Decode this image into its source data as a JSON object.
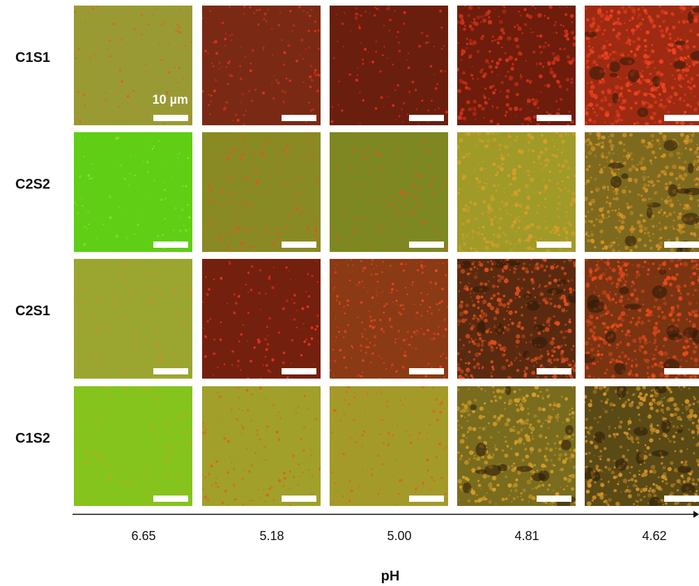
{
  "figure": {
    "rows": [
      {
        "label": "C1S1",
        "base": [
          "#9a9a34",
          "#7a2a14",
          "#6a1e0e",
          "#6e1c0c",
          "#9e2a12"
        ],
        "spot": [
          "#d46a1c",
          "#e8341c",
          "#e02a18",
          "#d8341a",
          "#f04420"
        ],
        "density": [
          0.25,
          0.5,
          0.4,
          1.3,
          2.2
        ]
      },
      {
        "label": "C2S2",
        "base": [
          "#5fce14",
          "#8a8a24",
          "#7e8822",
          "#a09a28",
          "#7e6a1e"
        ],
        "spot": [
          "#8ae02a",
          "#e0581c",
          "#d85a1c",
          "#d6a02a",
          "#d49428"
        ],
        "density": [
          0.2,
          0.5,
          0.5,
          1.5,
          2.2
        ]
      },
      {
        "label": "C2S1",
        "base": [
          "#9aa630",
          "#74200e",
          "#8a3a14",
          "#5a2a10",
          "#7a3412"
        ],
        "spot": [
          "#d48a22",
          "#ee3420",
          "#e8481e",
          "#e0501c",
          "#e84a1c"
        ],
        "density": [
          0.25,
          0.4,
          1.0,
          2.2,
          2.2
        ]
      },
      {
        "label": "C1S2",
        "base": [
          "#84c41c",
          "#a0a02a",
          "#a49a2a",
          "#7a6c1e",
          "#5a4a16"
        ],
        "spot": [
          "#d4a022",
          "#e0601c",
          "#de621c",
          "#d8a02a",
          "#d6962a"
        ],
        "density": [
          0.2,
          0.4,
          0.4,
          1.8,
          2.2
        ]
      }
    ],
    "columns_pH": [
      "6.65",
      "5.18",
      "5.00",
      "4.81",
      "4.62"
    ],
    "scale_label": "10 µm",
    "axis_title": "pH"
  }
}
